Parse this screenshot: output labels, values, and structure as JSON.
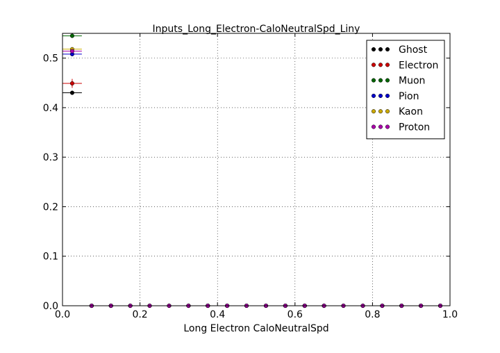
{
  "chart_data": {
    "type": "scatter",
    "title": "Inputs_Long_Electron-CaloNeutralSpd_Liny",
    "xlabel": "Long Electron CaloNeutralSpd",
    "ylabel": "",
    "xlim": [
      0.0,
      1.0
    ],
    "ylim": [
      0.0,
      0.55
    ],
    "x_ticks": [
      "0.0",
      "0.2",
      "0.4",
      "0.6",
      "0.8",
      "1.0"
    ],
    "y_ticks": [
      "0.0",
      "0.1",
      "0.2",
      "0.3",
      "0.4",
      "0.5"
    ],
    "grid": true,
    "legend_position": "top-right",
    "bin_width": 0.05,
    "x": [
      0.025,
      0.075,
      0.125,
      0.175,
      0.225,
      0.275,
      0.325,
      0.375,
      0.425,
      0.475,
      0.525,
      0.575,
      0.625,
      0.675,
      0.725,
      0.775,
      0.825,
      0.875,
      0.925,
      0.975
    ],
    "series": [
      {
        "name": "Ghost",
        "color": "#000000",
        "values": [
          0.43,
          0,
          0,
          0,
          0,
          0,
          0,
          0,
          0,
          0,
          0,
          0,
          0,
          0,
          0,
          0,
          0,
          0,
          0,
          0
        ],
        "errors": [
          0.002,
          0,
          0,
          0,
          0,
          0,
          0,
          0,
          0,
          0,
          0,
          0,
          0,
          0,
          0,
          0,
          0,
          0,
          0,
          0
        ]
      },
      {
        "name": "Electron",
        "color": "#cc0000",
        "values": [
          0.449,
          0,
          0,
          0,
          0,
          0,
          0,
          0,
          0,
          0,
          0,
          0,
          0,
          0,
          0,
          0,
          0,
          0,
          0,
          0
        ],
        "errors": [
          0.009,
          0,
          0,
          0,
          0,
          0,
          0,
          0,
          0,
          0,
          0,
          0,
          0,
          0,
          0,
          0,
          0,
          0,
          0,
          0
        ]
      },
      {
        "name": "Muon",
        "color": "#006600",
        "values": [
          0.545,
          0,
          0,
          0,
          0,
          0,
          0,
          0,
          0,
          0,
          0,
          0,
          0,
          0,
          0,
          0,
          0,
          0,
          0,
          0
        ],
        "errors": [
          0.003,
          0,
          0,
          0,
          0,
          0,
          0,
          0,
          0,
          0,
          0,
          0,
          0,
          0,
          0,
          0,
          0,
          0,
          0,
          0
        ]
      },
      {
        "name": "Pion",
        "color": "#0000cc",
        "values": [
          0.508,
          0,
          0,
          0,
          0,
          0,
          0,
          0,
          0,
          0,
          0,
          0,
          0,
          0,
          0,
          0,
          0,
          0,
          0,
          0
        ],
        "errors": [
          0.002,
          0,
          0,
          0,
          0,
          0,
          0,
          0,
          0,
          0,
          0,
          0,
          0,
          0,
          0,
          0,
          0,
          0,
          0,
          0
        ]
      },
      {
        "name": "Kaon",
        "color": "#ccaa00",
        "values": [
          0.518,
          0,
          0,
          0,
          0,
          0,
          0,
          0,
          0,
          0,
          0,
          0,
          0,
          0,
          0,
          0,
          0,
          0,
          0,
          0
        ],
        "errors": [
          0.002,
          0,
          0,
          0,
          0,
          0,
          0,
          0,
          0,
          0,
          0,
          0,
          0,
          0,
          0,
          0,
          0,
          0,
          0,
          0
        ]
      },
      {
        "name": "Proton",
        "color": "#aa00aa",
        "values": [
          0.514,
          0,
          0,
          0,
          0,
          0,
          0,
          0,
          0,
          0,
          0,
          0,
          0,
          0,
          0,
          0,
          0,
          0,
          0,
          0
        ],
        "errors": [
          0.002,
          0,
          0,
          0,
          0,
          0,
          0,
          0,
          0,
          0,
          0,
          0,
          0,
          0,
          0,
          0,
          0,
          0,
          0,
          0
        ]
      }
    ]
  }
}
